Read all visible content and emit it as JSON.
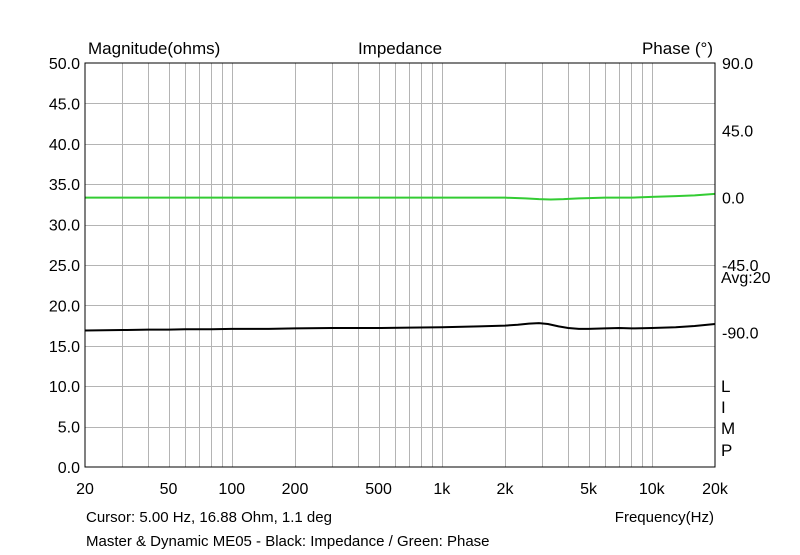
{
  "chart_data": {
    "type": "line",
    "title": "Impedance",
    "ylabel_left": "Magnitude(ohms)",
    "ylabel_right": "Phase (°)",
    "xlabel": "Frequency(Hz)",
    "x_scale": "log",
    "xlim": [
      20,
      20000
    ],
    "ylim_left": [
      0,
      50
    ],
    "ylim_right": [
      -180,
      90
    ],
    "grid": true,
    "x_ticks": [
      {
        "value": 20,
        "label": "20"
      },
      {
        "value": 50,
        "label": "50"
      },
      {
        "value": 100,
        "label": "100"
      },
      {
        "value": 200,
        "label": "200"
      },
      {
        "value": 500,
        "label": "500"
      },
      {
        "value": 1000,
        "label": "1k"
      },
      {
        "value": 2000,
        "label": "2k"
      },
      {
        "value": 5000,
        "label": "5k"
      },
      {
        "value": 10000,
        "label": "10k"
      },
      {
        "value": 20000,
        "label": "20k"
      }
    ],
    "y_ticks_left": [
      "50.0",
      "45.0",
      "40.0",
      "35.0",
      "30.0",
      "25.0",
      "20.0",
      "15.0",
      "10.0",
      "5.0",
      "0.0"
    ],
    "y_ticks_right": [
      {
        "value": 90,
        "label": "90.0"
      },
      {
        "value": 45,
        "label": "45.0"
      },
      {
        "value": 0,
        "label": "0.0"
      },
      {
        "value": -45,
        "label": "-45.0"
      },
      {
        "value": -90,
        "label": "-90.0"
      }
    ],
    "series": [
      {
        "name": "Impedance",
        "axis": "left",
        "color": "#000000",
        "x": [
          20,
          30,
          40,
          50,
          60,
          80,
          100,
          150,
          200,
          300,
          500,
          700,
          1000,
          1500,
          2000,
          2300,
          2600,
          2900,
          3200,
          3600,
          4000,
          4500,
          5000,
          6000,
          7000,
          8000,
          10000,
          13000,
          16000,
          20000
        ],
        "y": [
          16.9,
          16.95,
          17.0,
          17.0,
          17.05,
          17.05,
          17.1,
          17.1,
          17.15,
          17.2,
          17.2,
          17.25,
          17.3,
          17.4,
          17.5,
          17.6,
          17.75,
          17.8,
          17.7,
          17.4,
          17.2,
          17.1,
          17.1,
          17.15,
          17.2,
          17.15,
          17.2,
          17.3,
          17.45,
          17.7
        ]
      },
      {
        "name": "Phase",
        "axis": "right",
        "color": "#33cc33",
        "x": [
          20,
          30,
          50,
          70,
          100,
          150,
          200,
          300,
          500,
          700,
          1000,
          1500,
          2000,
          2500,
          2900,
          3300,
          3800,
          4500,
          5000,
          6000,
          7000,
          8000,
          10000,
          13000,
          16000,
          20000
        ],
        "y": [
          0.0,
          0.0,
          0.0,
          0.0,
          0.0,
          0.0,
          0.0,
          0.0,
          0.0,
          0.0,
          0.0,
          0.0,
          0.0,
          -0.5,
          -1.0,
          -1.2,
          -1.0,
          -0.5,
          -0.3,
          0.0,
          0.0,
          0.0,
          0.5,
          1.0,
          1.5,
          2.5
        ]
      }
    ],
    "annotations": {
      "avg": "Avg:20",
      "limp": [
        "L",
        "I",
        "M",
        "P"
      ],
      "cursor": "Cursor: 5.00 Hz, 16.88 Ohm, 1.1 deg",
      "caption": "Master & Dynamic ME05 - Black: Impedance / Green: Phase"
    }
  }
}
